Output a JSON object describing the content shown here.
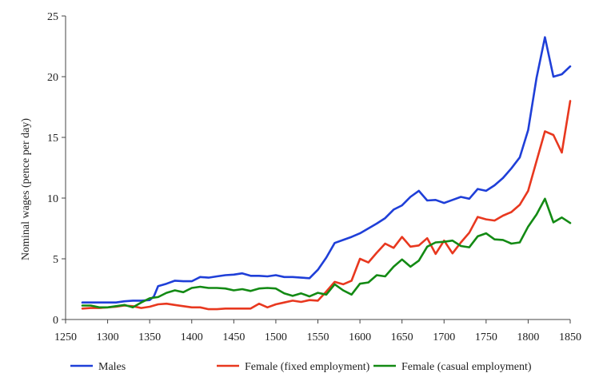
{
  "chart_data": {
    "type": "line",
    "title": "",
    "xlabel": "",
    "ylabel": "Nominal wages (pence per day)",
    "xlim": [
      1250,
      1850
    ],
    "ylim": [
      0,
      25
    ],
    "xticks": [
      1250,
      1300,
      1350,
      1400,
      1450,
      1500,
      1550,
      1600,
      1650,
      1700,
      1750,
      1800,
      1850
    ],
    "yticks": [
      0,
      5,
      10,
      15,
      20,
      25
    ],
    "grid": false,
    "legend_position": "bottom",
    "series": [
      {
        "name": "Males",
        "color": "#1f3fd8",
        "points": [
          [
            1270,
            1.4
          ],
          [
            1280,
            1.4
          ],
          [
            1290,
            1.4
          ],
          [
            1300,
            1.4
          ],
          [
            1310,
            1.4
          ],
          [
            1320,
            1.5
          ],
          [
            1330,
            1.55
          ],
          [
            1340,
            1.55
          ],
          [
            1350,
            1.6
          ],
          [
            1355,
            1.9
          ],
          [
            1360,
            2.75
          ],
          [
            1370,
            2.95
          ],
          [
            1380,
            3.2
          ],
          [
            1390,
            3.15
          ],
          [
            1400,
            3.15
          ],
          [
            1410,
            3.5
          ],
          [
            1420,
            3.45
          ],
          [
            1430,
            3.55
          ],
          [
            1440,
            3.65
          ],
          [
            1450,
            3.7
          ],
          [
            1460,
            3.8
          ],
          [
            1470,
            3.6
          ],
          [
            1480,
            3.6
          ],
          [
            1490,
            3.55
          ],
          [
            1500,
            3.65
          ],
          [
            1510,
            3.5
          ],
          [
            1520,
            3.5
          ],
          [
            1530,
            3.45
          ],
          [
            1540,
            3.4
          ],
          [
            1550,
            4.1
          ],
          [
            1560,
            5.1
          ],
          [
            1570,
            6.3
          ],
          [
            1580,
            6.55
          ],
          [
            1590,
            6.8
          ],
          [
            1600,
            7.1
          ],
          [
            1610,
            7.5
          ],
          [
            1620,
            7.9
          ],
          [
            1630,
            8.35
          ],
          [
            1640,
            9.05
          ],
          [
            1650,
            9.4
          ],
          [
            1660,
            10.1
          ],
          [
            1670,
            10.6
          ],
          [
            1680,
            9.8
          ],
          [
            1690,
            9.85
          ],
          [
            1700,
            9.6
          ],
          [
            1710,
            9.85
          ],
          [
            1720,
            10.1
          ],
          [
            1730,
            9.95
          ],
          [
            1740,
            10.75
          ],
          [
            1750,
            10.6
          ],
          [
            1760,
            11.05
          ],
          [
            1770,
            11.65
          ],
          [
            1780,
            12.45
          ],
          [
            1790,
            13.35
          ],
          [
            1800,
            15.6
          ],
          [
            1810,
            19.9
          ],
          [
            1820,
            23.25
          ],
          [
            1830,
            20.0
          ],
          [
            1840,
            20.2
          ],
          [
            1850,
            20.85
          ]
        ]
      },
      {
        "name": "Female (fixed employment)",
        "color": "#e8381f",
        "points": [
          [
            1270,
            0.9
          ],
          [
            1280,
            0.95
          ],
          [
            1290,
            0.95
          ],
          [
            1300,
            1.0
          ],
          [
            1310,
            1.05
          ],
          [
            1320,
            1.15
          ],
          [
            1330,
            1.1
          ],
          [
            1340,
            0.95
          ],
          [
            1350,
            1.05
          ],
          [
            1360,
            1.25
          ],
          [
            1370,
            1.3
          ],
          [
            1380,
            1.2
          ],
          [
            1390,
            1.1
          ],
          [
            1400,
            1.0
          ],
          [
            1410,
            1.0
          ],
          [
            1420,
            0.85
          ],
          [
            1430,
            0.85
          ],
          [
            1440,
            0.9
          ],
          [
            1450,
            0.9
          ],
          [
            1460,
            0.9
          ],
          [
            1470,
            0.9
          ],
          [
            1480,
            1.3
          ],
          [
            1490,
            1.0
          ],
          [
            1500,
            1.25
          ],
          [
            1510,
            1.4
          ],
          [
            1520,
            1.55
          ],
          [
            1530,
            1.45
          ],
          [
            1540,
            1.6
          ],
          [
            1550,
            1.55
          ],
          [
            1560,
            2.3
          ],
          [
            1570,
            3.1
          ],
          [
            1580,
            2.9
          ],
          [
            1590,
            3.2
          ],
          [
            1600,
            5.0
          ],
          [
            1610,
            4.7
          ],
          [
            1620,
            5.5
          ],
          [
            1630,
            6.25
          ],
          [
            1640,
            5.9
          ],
          [
            1650,
            6.8
          ],
          [
            1660,
            6.0
          ],
          [
            1670,
            6.1
          ],
          [
            1680,
            6.7
          ],
          [
            1690,
            5.4
          ],
          [
            1700,
            6.5
          ],
          [
            1710,
            5.45
          ],
          [
            1720,
            6.35
          ],
          [
            1730,
            7.15
          ],
          [
            1740,
            8.45
          ],
          [
            1750,
            8.25
          ],
          [
            1760,
            8.15
          ],
          [
            1770,
            8.55
          ],
          [
            1780,
            8.85
          ],
          [
            1790,
            9.45
          ],
          [
            1800,
            10.6
          ],
          [
            1810,
            13.05
          ],
          [
            1820,
            15.5
          ],
          [
            1830,
            15.2
          ],
          [
            1840,
            13.75
          ],
          [
            1850,
            18.0
          ]
        ]
      },
      {
        "name": "Female (casual employment)",
        "color": "#138a14",
        "points": [
          [
            1270,
            1.15
          ],
          [
            1280,
            1.15
          ],
          [
            1290,
            1.0
          ],
          [
            1300,
            1.0
          ],
          [
            1310,
            1.1
          ],
          [
            1320,
            1.2
          ],
          [
            1330,
            1.0
          ],
          [
            1340,
            1.4
          ],
          [
            1350,
            1.75
          ],
          [
            1360,
            1.85
          ],
          [
            1370,
            2.2
          ],
          [
            1380,
            2.4
          ],
          [
            1390,
            2.25
          ],
          [
            1400,
            2.6
          ],
          [
            1410,
            2.7
          ],
          [
            1420,
            2.6
          ],
          [
            1430,
            2.6
          ],
          [
            1440,
            2.55
          ],
          [
            1450,
            2.4
          ],
          [
            1460,
            2.5
          ],
          [
            1470,
            2.35
          ],
          [
            1480,
            2.55
          ],
          [
            1490,
            2.6
          ],
          [
            1500,
            2.55
          ],
          [
            1510,
            2.15
          ],
          [
            1520,
            1.95
          ],
          [
            1530,
            2.15
          ],
          [
            1540,
            1.9
          ],
          [
            1550,
            2.2
          ],
          [
            1560,
            2.05
          ],
          [
            1570,
            2.9
          ],
          [
            1580,
            2.4
          ],
          [
            1590,
            2.05
          ],
          [
            1600,
            2.95
          ],
          [
            1610,
            3.05
          ],
          [
            1620,
            3.65
          ],
          [
            1630,
            3.55
          ],
          [
            1640,
            4.35
          ],
          [
            1650,
            4.95
          ],
          [
            1660,
            4.35
          ],
          [
            1670,
            4.85
          ],
          [
            1680,
            6.0
          ],
          [
            1690,
            6.35
          ],
          [
            1700,
            6.4
          ],
          [
            1710,
            6.5
          ],
          [
            1720,
            6.05
          ],
          [
            1730,
            5.95
          ],
          [
            1740,
            6.85
          ],
          [
            1750,
            7.1
          ],
          [
            1760,
            6.6
          ],
          [
            1770,
            6.55
          ],
          [
            1780,
            6.25
          ],
          [
            1790,
            6.35
          ],
          [
            1800,
            7.65
          ],
          [
            1810,
            8.65
          ],
          [
            1820,
            9.95
          ],
          [
            1830,
            8.0
          ],
          [
            1840,
            8.4
          ],
          [
            1850,
            7.95
          ]
        ]
      }
    ]
  }
}
